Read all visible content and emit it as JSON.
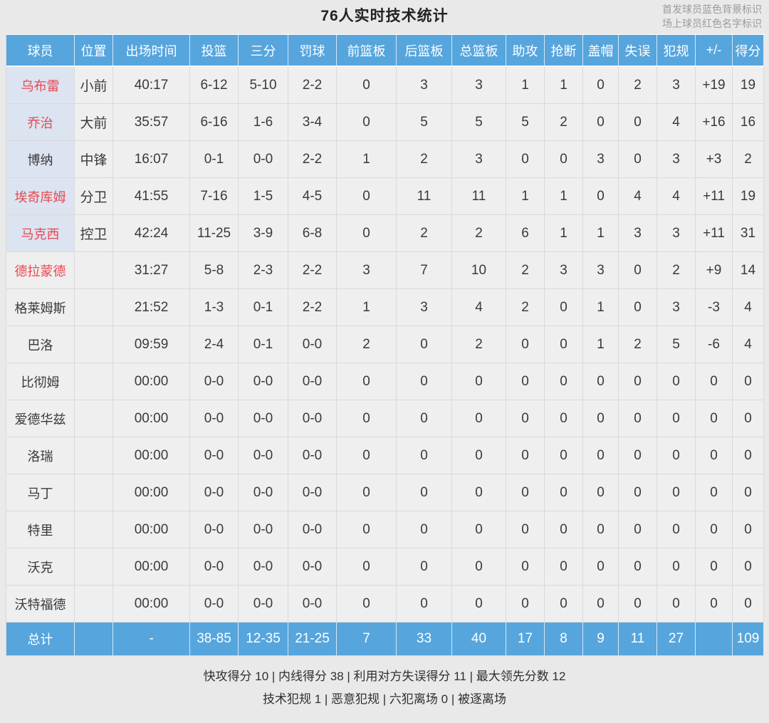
{
  "page": {
    "title": "76人实时技术统计",
    "legend_line1": "首发球员蓝色背景标识",
    "legend_line2": "场上球员红色名字标识"
  },
  "colors": {
    "header_blue": "#56a5dd",
    "starter_bg": "#dce3f1",
    "on_court_red": "#e8484f",
    "cell_bg": "#efefef",
    "page_bg": "#e9e9e9"
  },
  "table": {
    "columns": [
      "球员",
      "位置",
      "出场时间",
      "投篮",
      "三分",
      "罚球",
      "前篮板",
      "后篮板",
      "总篮板",
      "助攻",
      "抢断",
      "盖帽",
      "失误",
      "犯规",
      "+/-",
      "得分"
    ],
    "rows": [
      {
        "name": "乌布雷",
        "position": "小前",
        "starter": true,
        "on_court": true,
        "stats": [
          "40:17",
          "6-12",
          "5-10",
          "2-2",
          "0",
          "3",
          "3",
          "1",
          "1",
          "0",
          "2",
          "3",
          "+19",
          "19"
        ]
      },
      {
        "name": "乔治",
        "position": "大前",
        "starter": true,
        "on_court": true,
        "stats": [
          "35:57",
          "6-16",
          "1-6",
          "3-4",
          "0",
          "5",
          "5",
          "5",
          "2",
          "0",
          "0",
          "4",
          "+16",
          "16"
        ]
      },
      {
        "name": "博纳",
        "position": "中锋",
        "starter": true,
        "on_court": false,
        "stats": [
          "16:07",
          "0-1",
          "0-0",
          "2-2",
          "1",
          "2",
          "3",
          "0",
          "0",
          "3",
          "0",
          "3",
          "+3",
          "2"
        ]
      },
      {
        "name": "埃奇库姆",
        "position": "分卫",
        "starter": true,
        "on_court": true,
        "stats": [
          "41:55",
          "7-16",
          "1-5",
          "4-5",
          "0",
          "11",
          "11",
          "1",
          "1",
          "0",
          "4",
          "4",
          "+11",
          "19"
        ]
      },
      {
        "name": "马克西",
        "position": "控卫",
        "starter": true,
        "on_court": true,
        "stats": [
          "42:24",
          "11-25",
          "3-9",
          "6-8",
          "0",
          "2",
          "2",
          "6",
          "1",
          "1",
          "3",
          "3",
          "+11",
          "31"
        ]
      },
      {
        "name": "德拉蒙德",
        "position": "",
        "starter": false,
        "on_court": true,
        "stats": [
          "31:27",
          "5-8",
          "2-3",
          "2-2",
          "3",
          "7",
          "10",
          "2",
          "3",
          "3",
          "0",
          "2",
          "+9",
          "14"
        ]
      },
      {
        "name": "格莱姆斯",
        "position": "",
        "starter": false,
        "on_court": false,
        "stats": [
          "21:52",
          "1-3",
          "0-1",
          "2-2",
          "1",
          "3",
          "4",
          "2",
          "0",
          "1",
          "0",
          "3",
          "-3",
          "4"
        ]
      },
      {
        "name": "巴洛",
        "position": "",
        "starter": false,
        "on_court": false,
        "stats": [
          "09:59",
          "2-4",
          "0-1",
          "0-0",
          "2",
          "0",
          "2",
          "0",
          "0",
          "1",
          "2",
          "5",
          "-6",
          "4"
        ]
      },
      {
        "name": "比彻姆",
        "position": "",
        "starter": false,
        "on_court": false,
        "stats": [
          "00:00",
          "0-0",
          "0-0",
          "0-0",
          "0",
          "0",
          "0",
          "0",
          "0",
          "0",
          "0",
          "0",
          "0",
          "0"
        ]
      },
      {
        "name": "爱德华兹",
        "position": "",
        "starter": false,
        "on_court": false,
        "stats": [
          "00:00",
          "0-0",
          "0-0",
          "0-0",
          "0",
          "0",
          "0",
          "0",
          "0",
          "0",
          "0",
          "0",
          "0",
          "0"
        ]
      },
      {
        "name": "洛瑞",
        "position": "",
        "starter": false,
        "on_court": false,
        "stats": [
          "00:00",
          "0-0",
          "0-0",
          "0-0",
          "0",
          "0",
          "0",
          "0",
          "0",
          "0",
          "0",
          "0",
          "0",
          "0"
        ]
      },
      {
        "name": "马丁",
        "position": "",
        "starter": false,
        "on_court": false,
        "stats": [
          "00:00",
          "0-0",
          "0-0",
          "0-0",
          "0",
          "0",
          "0",
          "0",
          "0",
          "0",
          "0",
          "0",
          "0",
          "0"
        ]
      },
      {
        "name": "特里",
        "position": "",
        "starter": false,
        "on_court": false,
        "stats": [
          "00:00",
          "0-0",
          "0-0",
          "0-0",
          "0",
          "0",
          "0",
          "0",
          "0",
          "0",
          "0",
          "0",
          "0",
          "0"
        ]
      },
      {
        "name": "沃克",
        "position": "",
        "starter": false,
        "on_court": false,
        "stats": [
          "00:00",
          "0-0",
          "0-0",
          "0-0",
          "0",
          "0",
          "0",
          "0",
          "0",
          "0",
          "0",
          "0",
          "0",
          "0"
        ]
      },
      {
        "name": "沃特福德",
        "position": "",
        "starter": false,
        "on_court": false,
        "stats": [
          "00:00",
          "0-0",
          "0-0",
          "0-0",
          "0",
          "0",
          "0",
          "0",
          "0",
          "0",
          "0",
          "0",
          "0",
          "0"
        ]
      }
    ],
    "total": {
      "label": "总计",
      "position": "",
      "stats": [
        "-",
        "38-85",
        "12-35",
        "21-25",
        "7",
        "33",
        "40",
        "17",
        "8",
        "9",
        "11",
        "27",
        "",
        "109"
      ]
    }
  },
  "footer": {
    "line1": "快攻得分 10 | 内线得分 38 | 利用对方失误得分 11 | 最大领先分数 12",
    "line2": "技术犯规 1 | 恶意犯规  | 六犯离场 0 | 被逐离场"
  }
}
